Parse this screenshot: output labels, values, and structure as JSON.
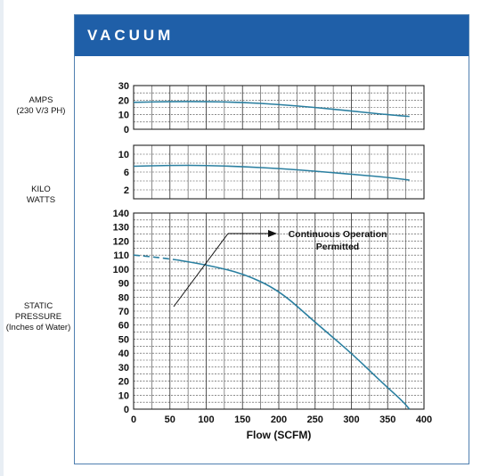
{
  "header": {
    "title": "VACUUM",
    "color": "#1f5fa8"
  },
  "row_labels": {
    "amps": [
      "AMPS",
      "(230 V/3 PH)"
    ],
    "kilowatts": [
      "KILO",
      "WATTS"
    ],
    "pressure": [
      "STATIC",
      "PRESSURE",
      "(Inches of Water)"
    ]
  },
  "colors": {
    "curve": "#2a7fa0",
    "grid": "#444444",
    "frame": "#4f7fb0"
  },
  "chart_data": [
    {
      "type": "line",
      "panel": "amps",
      "ylim": [
        0,
        30
      ],
      "y_ticks": [
        0,
        10,
        20,
        30
      ],
      "xlim": [
        0,
        400
      ],
      "series": [
        {
          "x": [
            0,
            50,
            100,
            150,
            200,
            250,
            300,
            350,
            380
          ],
          "y": [
            18.5,
            19,
            19,
            18.5,
            17,
            15,
            12.5,
            10,
            8.8
          ]
        }
      ]
    },
    {
      "type": "line",
      "panel": "kilowatts",
      "ylim": [
        0,
        12
      ],
      "y_ticks": [
        2,
        6,
        10
      ],
      "xlim": [
        0,
        400
      ],
      "series": [
        {
          "x": [
            0,
            50,
            100,
            150,
            200,
            250,
            300,
            350,
            380
          ],
          "y": [
            7.3,
            7.5,
            7.5,
            7.2,
            6.8,
            6.2,
            5.5,
            4.8,
            4.2
          ]
        }
      ]
    },
    {
      "type": "line",
      "panel": "pressure",
      "xlabel": "Flow (SCFM)",
      "ylim": [
        0,
        140
      ],
      "y_ticks": [
        0,
        10,
        20,
        30,
        40,
        50,
        60,
        70,
        80,
        90,
        100,
        110,
        120,
        130,
        140
      ],
      "xlim": [
        0,
        400
      ],
      "x_ticks": [
        0,
        50,
        100,
        150,
        200,
        250,
        300,
        350,
        400
      ],
      "series": [
        {
          "style": "dashed",
          "x": [
            0,
            30,
            60
          ],
          "y": [
            110,
            108.5,
            106.5
          ]
        },
        {
          "style": "solid",
          "x": [
            60,
            100,
            150,
            200,
            250,
            300,
            340,
            370,
            380
          ],
          "y": [
            106.5,
            103,
            97,
            85,
            62,
            40,
            20,
            6,
            0
          ]
        }
      ],
      "annotation": {
        "lines": [
          "Continuous Operation",
          "Permitted"
        ]
      }
    }
  ]
}
